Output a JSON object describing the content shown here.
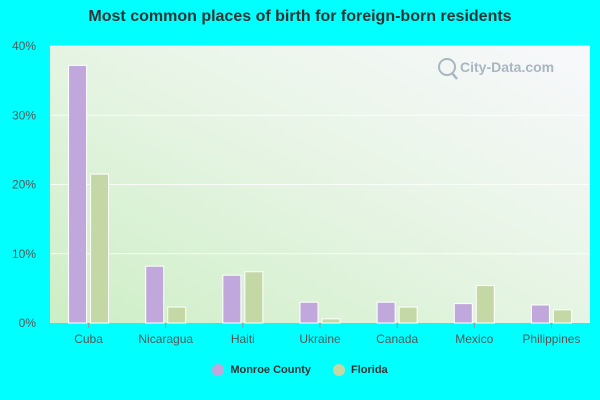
{
  "watermark": "City-Data.com",
  "chart_data": {
    "type": "bar",
    "title": "Most common places of birth for foreign-born residents",
    "categories": [
      "Cuba",
      "Nicaragua",
      "Haiti",
      "Ukraine",
      "Canada",
      "Mexico",
      "Philippines"
    ],
    "series": [
      {
        "name": "Monroe County",
        "color": "#c0a8dc",
        "values": [
          37.2,
          8.2,
          6.9,
          3.0,
          3.0,
          2.8,
          2.6
        ]
      },
      {
        "name": "Florida",
        "color": "#c4d8a6",
        "values": [
          21.5,
          2.3,
          7.4,
          0.6,
          2.3,
          5.4,
          1.9
        ]
      }
    ],
    "yticks": [
      "0%",
      "10%",
      "20%",
      "30%",
      "40%"
    ],
    "ylim": [
      0,
      40
    ],
    "xlabel": "",
    "ylabel": "",
    "grid": true,
    "legend_position": "bottom-center"
  }
}
